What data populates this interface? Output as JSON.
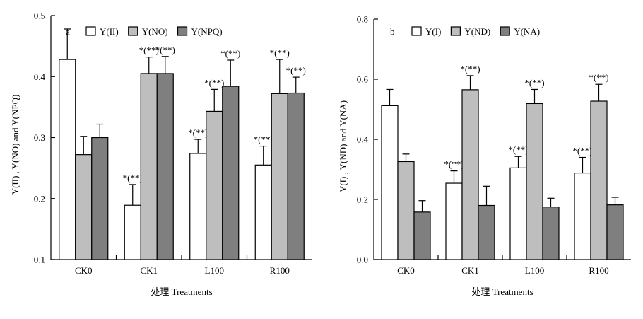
{
  "chart_data": [
    {
      "type": "bar",
      "panel_label": "a",
      "categories": [
        "CK0",
        "CK1",
        "L100",
        "R100"
      ],
      "xlabel": "处理 Treatments",
      "ylabel": "Y(II) , Y(NO) and Y(NPQ)",
      "ylim": [
        0.1,
        0.5
      ],
      "yticks": [
        "0.1",
        "0.2",
        "0.3",
        "0.4",
        "0.5"
      ],
      "legend_position": "top-left",
      "series": [
        {
          "name": "Y(II)",
          "color": "#ffffff",
          "values": [
            0.428,
            0.189,
            0.274,
            0.255
          ],
          "errors": [
            0.05,
            0.034,
            0.023,
            0.031
          ],
          "labels": [
            "",
            "*(**)",
            "*(**)",
            "*(**)"
          ]
        },
        {
          "name": "Y(NO)",
          "color": "#bebebe",
          "values": [
            0.272,
            0.405,
            0.343,
            0.372
          ],
          "errors": [
            0.03,
            0.027,
            0.036,
            0.056
          ],
          "labels": [
            "",
            "*(**)",
            "*(**)",
            "*(**)"
          ]
        },
        {
          "name": "Y(NPQ)",
          "color": "#7f7f7f",
          "values": [
            0.3,
            0.405,
            0.384,
            0.373
          ],
          "errors": [
            0.022,
            0.028,
            0.043,
            0.026
          ],
          "labels": [
            "",
            "*(**)",
            "*(**)",
            "*(**)"
          ]
        }
      ]
    },
    {
      "type": "bar",
      "panel_label": "b",
      "categories": [
        "CK0",
        "CK1",
        "L100",
        "R100"
      ],
      "xlabel": "处理 Treatments",
      "ylabel": "Y(I) , Y(ND) and Y(NA)",
      "ylim": [
        0.0,
        0.8
      ],
      "yticks": [
        "0.0",
        "0.2",
        "0.4",
        "0.6",
        "0.8"
      ],
      "legend_position": "top-left",
      "series": [
        {
          "name": "Y(I)",
          "color": "#ffffff",
          "values": [
            0.512,
            0.254,
            0.305,
            0.288
          ],
          "errors": [
            0.054,
            0.041,
            0.038,
            0.052
          ],
          "labels": [
            "",
            "*(**)",
            "*(**)",
            "*(**)"
          ]
        },
        {
          "name": "Y(ND)",
          "color": "#bebebe",
          "values": [
            0.326,
            0.565,
            0.519,
            0.527
          ],
          "errors": [
            0.025,
            0.047,
            0.047,
            0.056
          ],
          "labels": [
            "",
            "*(**)",
            "*(**)",
            "*(**)"
          ]
        },
        {
          "name": "Y(NA)",
          "color": "#7f7f7f",
          "values": [
            0.158,
            0.18,
            0.175,
            0.182
          ],
          "errors": [
            0.038,
            0.064,
            0.029,
            0.025
          ],
          "labels": [
            "",
            "",
            "",
            ""
          ]
        }
      ]
    }
  ]
}
